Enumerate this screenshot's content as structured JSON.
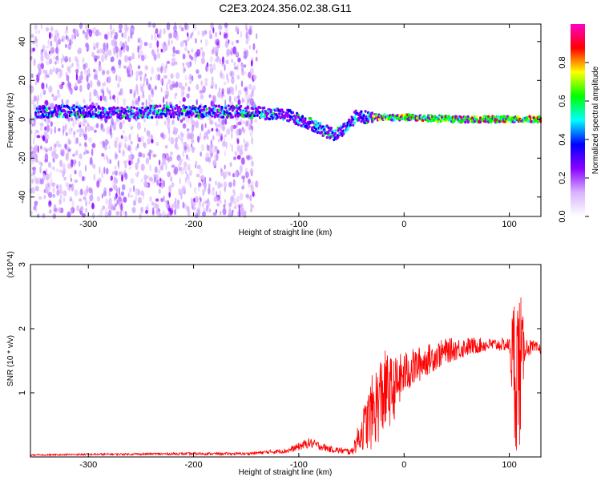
{
  "figure_title": "C2E3.2024.356.02.38.G11",
  "chart_data": [
    {
      "type": "heatmap",
      "title": "C2E3.2024.356.02.38.G11",
      "xlabel": "Height of straight line (km)",
      "ylabel": "Frequency (Hz)",
      "xlim": [
        -355,
        130
      ],
      "ylim": [
        -50,
        49
      ],
      "x_ticks": [
        -300,
        -200,
        -100,
        0,
        100
      ],
      "y_ticks": [
        -40,
        -20,
        0,
        20,
        40
      ],
      "colorbar": {
        "label": "Normalized spectral amplitude",
        "range": [
          0,
          1
        ],
        "ticks": [
          "0.0",
          "0.2",
          "0.4",
          "0.6",
          "0.8"
        ],
        "colors": [
          "#ffffff",
          "#d9b3ff",
          "#8a00ff",
          "#0000ff",
          "#00ffff",
          "#00ff00",
          "#ffff00",
          "#ff0000",
          "#ff00c8"
        ]
      },
      "ridge": {
        "description_points_x": [
          -330,
          -300,
          -270,
          -240,
          -200,
          -160,
          -130,
          -110,
          -90,
          -75,
          -65,
          -55,
          -45,
          -35,
          -20,
          0,
          50,
          100,
          130
        ],
        "description_points_y": [
          4,
          4,
          3,
          4,
          4,
          4,
          3,
          2,
          -2,
          -6,
          -8,
          -4,
          2,
          1,
          1,
          1,
          0,
          0,
          0
        ]
      },
      "noise_region_x": [
        -355,
        -140
      ],
      "grid": false
    },
    {
      "type": "line",
      "xlabel": "Height of straight line (km)",
      "ylabel": "SNR (10 * v/v)",
      "y_multiplier": "(x10^4)",
      "xlim": [
        -355,
        130
      ],
      "ylim": [
        0,
        3
      ],
      "x_ticks": [
        -300,
        -200,
        -100,
        0,
        100
      ],
      "y_ticks": [
        1,
        2,
        3
      ],
      "series": [
        {
          "color": "#ff0000",
          "envelope_x": [
            -355,
            -300,
            -200,
            -150,
            -110,
            -90,
            -70,
            -50,
            -40,
            -30,
            -20,
            -10,
            0,
            20,
            40,
            60,
            80,
            100,
            105,
            110,
            115,
            130
          ],
          "envelope_mean": [
            0.03,
            0.04,
            0.05,
            0.05,
            0.1,
            0.22,
            0.12,
            0.08,
            0.4,
            0.7,
            1.0,
            1.05,
            1.3,
            1.5,
            1.65,
            1.72,
            1.75,
            1.75,
            1.4,
            1.4,
            1.72,
            1.68
          ],
          "envelope_spread": [
            0.01,
            0.015,
            0.02,
            0.02,
            0.04,
            0.08,
            0.05,
            0.05,
            0.3,
            0.6,
            0.7,
            0.5,
            0.35,
            0.25,
            0.2,
            0.15,
            0.1,
            0.1,
            1.3,
            1.3,
            0.15,
            0.08
          ]
        }
      ],
      "grid": false
    }
  ]
}
